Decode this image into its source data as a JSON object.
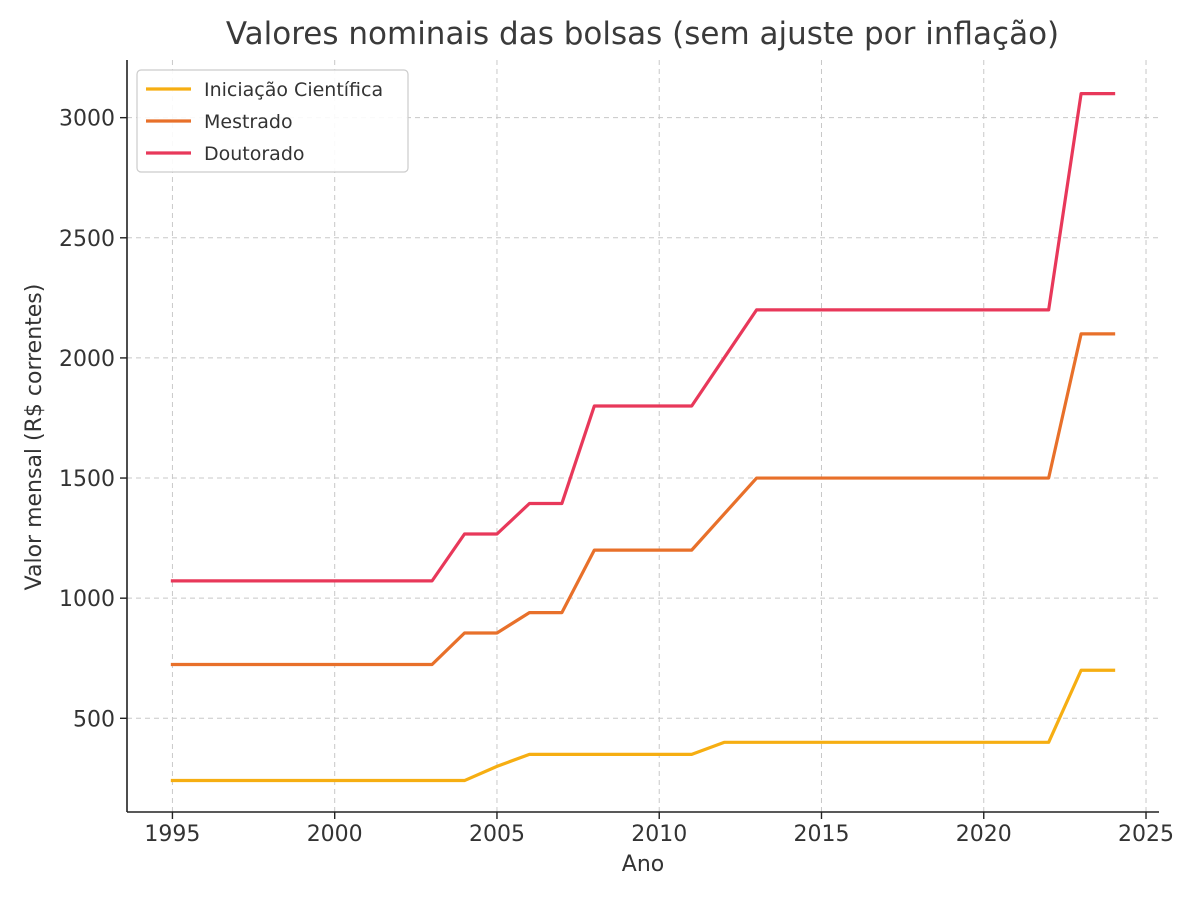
{
  "chart_data": {
    "type": "line",
    "title": "Valores nominais das bolsas (sem ajuste por inflação)",
    "xlabel": "Ano",
    "ylabel": "Valor mensal (R$ correntes)",
    "xlim": [
      1993.6,
      2025.4
    ],
    "ylim": [
      110,
      3240
    ],
    "xticks": [
      1995,
      2000,
      2005,
      2010,
      2015,
      2020,
      2025
    ],
    "yticks": [
      500,
      1000,
      1500,
      2000,
      2500,
      3000
    ],
    "grid": true,
    "legend_position": "top-left",
    "x": [
      1995,
      1996,
      1997,
      1998,
      1999,
      2000,
      2001,
      2002,
      2003,
      2004,
      2005,
      2006,
      2007,
      2008,
      2009,
      2010,
      2011,
      2012,
      2013,
      2014,
      2015,
      2016,
      2017,
      2018,
      2019,
      2020,
      2021,
      2022,
      2023,
      2024
    ],
    "series": [
      {
        "name": "Iniciação Científica",
        "color": "#f6ae12",
        "values": [
          241,
          241,
          241,
          241,
          241,
          241,
          241,
          241,
          241,
          241,
          300,
          350,
          350,
          350,
          350,
          350,
          350,
          400,
          400,
          400,
          400,
          400,
          400,
          400,
          400,
          400,
          400,
          400,
          700,
          700
        ]
      },
      {
        "name": "Mestrado",
        "color": "#e8702a",
        "values": [
          724,
          724,
          724,
          724,
          724,
          724,
          724,
          724,
          724,
          855,
          855,
          940,
          940,
          1200,
          1200,
          1200,
          1200,
          1350,
          1500,
          1500,
          1500,
          1500,
          1500,
          1500,
          1500,
          1500,
          1500,
          1500,
          2100,
          2100
        ]
      },
      {
        "name": "Doutorado",
        "color": "#e8385a",
        "values": [
          1072,
          1072,
          1072,
          1072,
          1072,
          1072,
          1072,
          1072,
          1072,
          1267,
          1267,
          1394,
          1394,
          1800,
          1800,
          1800,
          1800,
          2000,
          2200,
          2200,
          2200,
          2200,
          2200,
          2200,
          2200,
          2200,
          2200,
          2200,
          3100,
          3100
        ]
      }
    ]
  }
}
